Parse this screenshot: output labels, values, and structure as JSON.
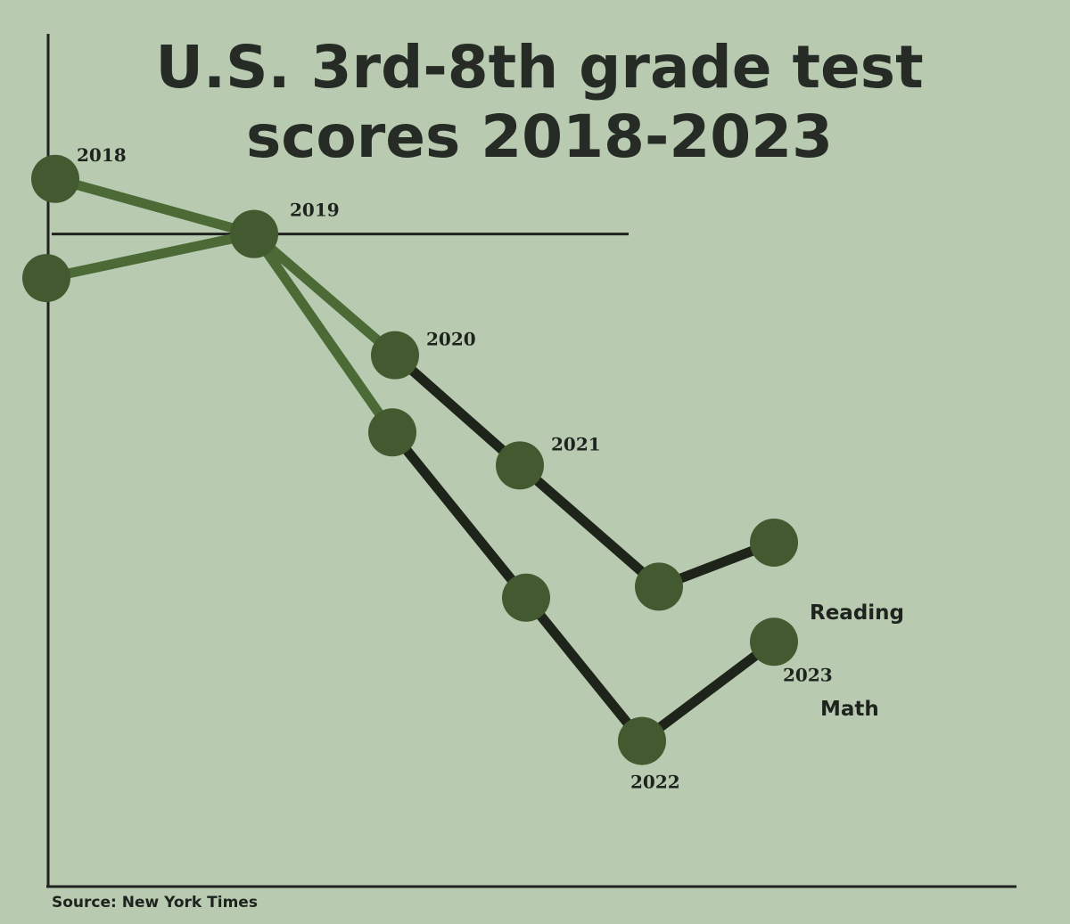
{
  "chart_data": {
    "type": "line",
    "title_lines": [
      "U.S. 3rd-8th grade test",
      "scores 2018-2023"
    ],
    "source": "Source: New York Times",
    "x": [
      2018,
      2019,
      2020,
      2021,
      2022,
      2023
    ],
    "year_labels": [
      "2018",
      "2019",
      "2020",
      "2021",
      "2022",
      "2023"
    ],
    "series": [
      {
        "name": "Reading",
        "values": [
          0.5,
          0.0,
          -1.1,
          -2.1,
          -3.2,
          -2.8
        ]
      },
      {
        "name": "Math",
        "values": [
          -0.4,
          0.0,
          -1.8,
          -3.3,
          -4.6,
          -3.7
        ]
      }
    ],
    "ylim": [
      -5.8,
      1.8
    ],
    "reference_line": 0,
    "colors": {
      "line_early": "#4b6a36",
      "line_late": "#1e2419",
      "point": "#435a30",
      "axis": "#1f221f"
    }
  }
}
